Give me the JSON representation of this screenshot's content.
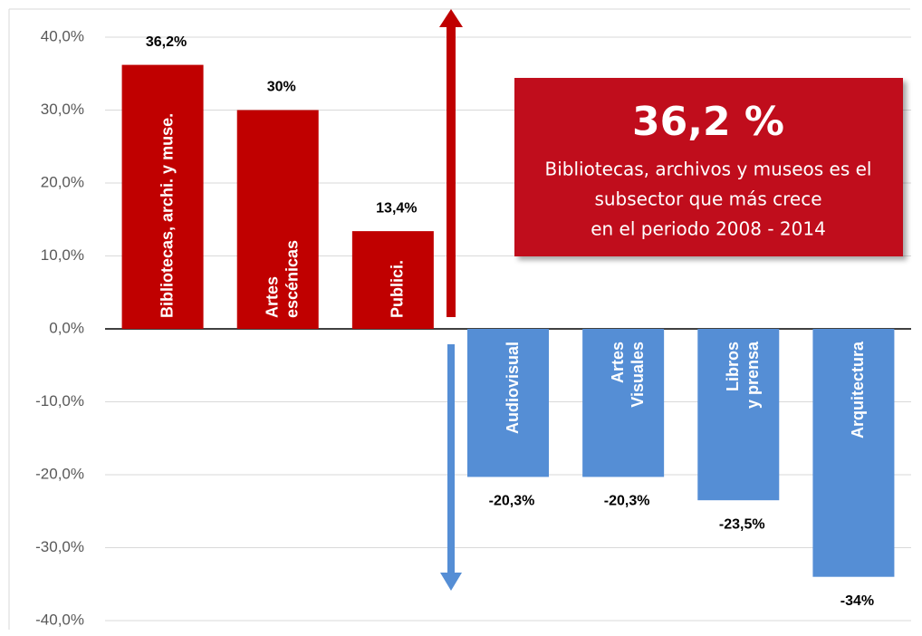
{
  "chart_data": {
    "type": "bar",
    "categories": [
      [
        "Bibliotecas, archi. y muse."
      ],
      [
        "Artes",
        "escénicas"
      ],
      [
        "Publici."
      ],
      [
        "Audiovisual"
      ],
      [
        "Artes",
        "Visuales"
      ],
      [
        "Libros",
        "y prensa"
      ],
      [
        "Arquitectura"
      ]
    ],
    "values": [
      36.2,
      30,
      13.4,
      -20.3,
      -20.3,
      -23.5,
      -34
    ],
    "value_labels": [
      "36,2%",
      "30%",
      "13,4%",
      "-20,3%",
      "-20,3%",
      "-23,5%",
      "-34%"
    ],
    "colors": [
      "#c00000",
      "#c00000",
      "#c00000",
      "#558ed5",
      "#558ed5",
      "#558ed5",
      "#558ed5"
    ],
    "ylim": [
      -40,
      40
    ],
    "yticks": [
      {
        "value": -40,
        "label": "-40,0%"
      },
      {
        "value": -30,
        "label": "-30,0%"
      },
      {
        "value": -20,
        "label": "-20,0%"
      },
      {
        "value": -10,
        "label": "-10,0%"
      },
      {
        "value": 0,
        "label": "0,0%"
      },
      {
        "value": 10,
        "label": "10,0%"
      },
      {
        "value": 20,
        "label": "20,0%"
      },
      {
        "value": 30,
        "label": "30,0%"
      },
      {
        "value": 40,
        "label": "40,0%"
      }
    ],
    "grid": true,
    "annotation": {
      "headline": "36,2 %",
      "lines": [
        "Bibliotecas, archivos y museos es el",
        "subsector que más crece",
        "en  el periodo 2008 - 2014"
      ]
    }
  }
}
